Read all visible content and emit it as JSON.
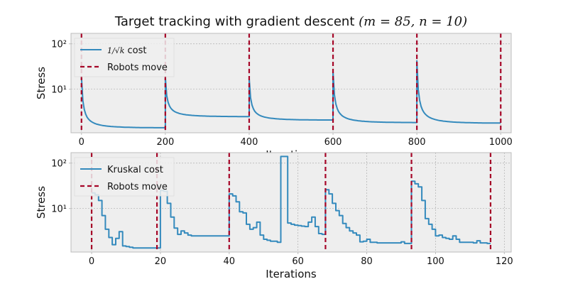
{
  "figure": {
    "title": "Target tracking with gradient descent",
    "title_math": "(m = 85, n = 10)"
  },
  "colors": {
    "axes_bg": "#eeeeee",
    "grid": "#b0b0b0",
    "line": "#348abd",
    "vline": "#a60628",
    "spine": "#bcbcbc",
    "text": "#111111"
  },
  "chart_data": [
    {
      "type": "line",
      "title": "Target tracking with gradient descent (m=85, n=10)",
      "xlabel": "Iterations",
      "ylabel": "Stress",
      "yscale": "log",
      "xlim": [
        -25,
        1025
      ],
      "ylim": [
        1.1,
        170
      ],
      "xticks": [
        0,
        200,
        400,
        600,
        800,
        1000
      ],
      "yticks": [
        {
          "value": 10,
          "label": "10¹"
        },
        {
          "value": 100,
          "label": "10²"
        }
      ],
      "grid": true,
      "legend": {
        "position": "top-left",
        "entries": [
          "1/√k cost",
          "Robots move"
        ],
        "entry_math": [
          "1/√k",
          ""
        ],
        "entry_text": [
          "cost",
          ""
        ]
      },
      "vlines": [
        0,
        200,
        400,
        600,
        800,
        1000
      ],
      "series": [
        {
          "name": "1/√k cost",
          "style": "line",
          "segments": [
            {
              "start": 0,
              "end": 200,
              "peak": 18,
              "plateau": 1.42
            },
            {
              "start": 200,
              "end": 400,
              "peak": 18,
              "plateau": 2.5
            },
            {
              "start": 400,
              "end": 600,
              "peak": 17,
              "plateau": 2.1
            },
            {
              "start": 600,
              "end": 800,
              "peak": 25,
              "plateau": 1.85
            },
            {
              "start": 800,
              "end": 1000,
              "peak": 42,
              "plateau": 1.8
            }
          ]
        },
        {
          "name": "Robots move",
          "style": "dashed-vertical"
        }
      ]
    },
    {
      "type": "line",
      "xlabel": "Iterations",
      "ylabel": "Stress",
      "yscale": "log",
      "xlim": [
        -6,
        122
      ],
      "ylim": [
        1.1,
        170
      ],
      "xticks": [
        0,
        20,
        40,
        60,
        80,
        100,
        120
      ],
      "yticks": [
        {
          "value": 10,
          "label": "10¹"
        },
        {
          "value": 100,
          "label": "10²"
        }
      ],
      "grid": true,
      "legend": {
        "position": "top-left",
        "entries": [
          "Kruskal cost",
          "Robots move"
        ]
      },
      "vlines": [
        0,
        19,
        40,
        68,
        93,
        116
      ],
      "series": [
        {
          "name": "Kruskal cost",
          "style": "step",
          "x": [
            0,
            1,
            2,
            3,
            4,
            5,
            6,
            7,
            8,
            9,
            10,
            11,
            12,
            13,
            14,
            15,
            16,
            17,
            18,
            19,
            20,
            21,
            22,
            23,
            24,
            25,
            26,
            27,
            28,
            29,
            30,
            31,
            32,
            33,
            34,
            35,
            36,
            37,
            38,
            39,
            40,
            41,
            42,
            43,
            44,
            45,
            46,
            47,
            48,
            49,
            50,
            51,
            52,
            53,
            54,
            55,
            56,
            57,
            58,
            59,
            60,
            61,
            62,
            63,
            64,
            65,
            66,
            67,
            68,
            69,
            70,
            71,
            72,
            73,
            74,
            75,
            76,
            77,
            78,
            79,
            80,
            81,
            82,
            83,
            84,
            85,
            86,
            87,
            88,
            89,
            90,
            91,
            92,
            93,
            94,
            95,
            96,
            97,
            98,
            99,
            100,
            101,
            102,
            103,
            104,
            105,
            106,
            107,
            108,
            109,
            110,
            111,
            112,
            113,
            114,
            115,
            116
          ],
          "y": [
            22,
            20,
            15,
            7,
            3.5,
            2.3,
            1.6,
            2.2,
            3.1,
            1.5,
            1.45,
            1.4,
            1.35,
            1.35,
            1.35,
            1.35,
            1.35,
            1.35,
            1.35,
            1.35,
            25,
            24,
            13,
            6.5,
            3.7,
            2.7,
            3.2,
            2.9,
            2.6,
            2.5,
            2.5,
            2.5,
            2.5,
            2.5,
            2.5,
            2.5,
            2.5,
            2.5,
            2.5,
            2.5,
            21,
            19,
            14,
            8.5,
            8,
            4.5,
            3.5,
            3.8,
            5,
            2.6,
            2.1,
            2,
            1.9,
            1.9,
            1.8,
            140,
            140,
            4.8,
            4.5,
            4.3,
            4.2,
            4.1,
            4,
            5,
            6.5,
            4,
            2.8,
            2.7,
            26,
            21,
            13,
            9,
            7,
            4.7,
            3.8,
            3.2,
            2.9,
            2.6,
            1.85,
            1.9,
            2.1,
            1.8,
            1.8,
            1.75,
            1.75,
            1.75,
            1.75,
            1.75,
            1.75,
            1.75,
            1.85,
            1.7,
            1.7,
            40,
            35,
            30,
            15,
            6,
            4.5,
            3.5,
            2.5,
            2.6,
            2.3,
            2.2,
            2.1,
            2.5,
            2.1,
            1.8,
            1.8,
            1.8,
            1.8,
            1.75,
            1.95,
            1.75,
            1.75,
            1.7,
            1.7
          ]
        },
        {
          "name": "Robots move",
          "style": "dashed-vertical"
        }
      ]
    }
  ]
}
